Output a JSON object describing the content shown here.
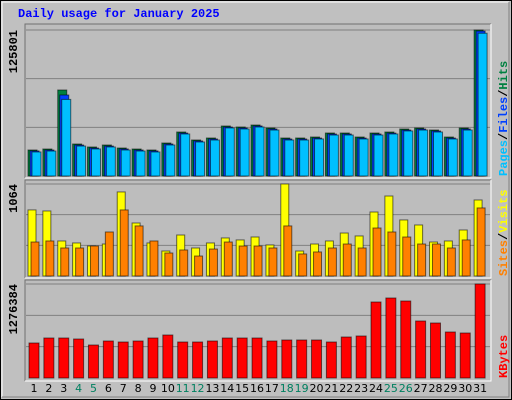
{
  "title": "Daily usage for January 2025",
  "legend_separator": "/",
  "chart_data": [
    {
      "type": "bar",
      "ylim": [
        0,
        125801
      ],
      "yticks": [
        125801
      ],
      "grid": true,
      "series": [
        {
          "name": "Hits",
          "color": "#008040",
          "values": [
            22400,
            23260,
            74100,
            27570,
            24990,
            26710,
            24120,
            23260,
            22400,
            28430,
            37910,
            31020,
            32740,
            43080,
            42220,
            43940,
            41360,
            32740,
            32740,
            33600,
            37050,
            37050,
            33600,
            37050,
            37910,
            40500,
            41360,
            39630,
            33600,
            41360,
            125801
          ]
        },
        {
          "name": "Files",
          "color": "#0040ff",
          "values": [
            21600,
            22400,
            69790,
            26700,
            24100,
            25800,
            23300,
            22400,
            21600,
            27600,
            37000,
            30200,
            31900,
            42200,
            41400,
            43100,
            40500,
            31900,
            31900,
            32700,
            36200,
            36200,
            32700,
            36200,
            37000,
            39600,
            40500,
            38800,
            32700,
            40500,
            124900
          ]
        },
        {
          "name": "Pages",
          "color": "#00c0ff",
          "values": [
            20700,
            21500,
            66000,
            25800,
            23300,
            25000,
            22400,
            21500,
            20700,
            26700,
            36200,
            29300,
            31000,
            41400,
            40500,
            42200,
            39600,
            31000,
            31000,
            31900,
            35300,
            35300,
            31900,
            35300,
            36200,
            38800,
            39600,
            37900,
            31900,
            39600,
            123000
          ]
        }
      ]
    },
    {
      "type": "bar",
      "ylim": [
        0,
        1064
      ],
      "yticks": [
        1064
      ],
      "grid": true,
      "series": [
        {
          "name": "Visits",
          "color": "#ffff00",
          "values": [
            764,
            752,
            405,
            382,
            347,
            370,
            972,
            613,
            382,
            289,
            474,
            324,
            382,
            440,
            417,
            451,
            359,
            1064,
            289,
            370,
            405,
            497,
            463,
            740,
            925,
            648,
            590,
            393,
            405,
            532,
            879
          ]
        },
        {
          "name": "Sites",
          "color": "#ff8000",
          "values": [
            393,
            405,
            324,
            324,
            347,
            509,
            764,
            579,
            405,
            266,
            301,
            231,
            312,
            393,
            347,
            347,
            324,
            579,
            255,
            278,
            324,
            370,
            324,
            555,
            509,
            451,
            370,
            370,
            324,
            417,
            787
          ]
        }
      ]
    },
    {
      "type": "bar",
      "ylim": [
        0,
        1276384
      ],
      "yticks": [
        1276384
      ],
      "grid": true,
      "categories": [
        "1",
        "2",
        "3",
        "4",
        "5",
        "6",
        "7",
        "8",
        "9",
        "10",
        "11",
        "12",
        "13",
        "14",
        "15",
        "16",
        "17",
        "18",
        "19",
        "20",
        "21",
        "22",
        "23",
        "24",
        "25",
        "26",
        "27",
        "28",
        "29",
        "30",
        "31"
      ],
      "category_colors": [
        "#000000",
        "#000000",
        "#000000",
        "#008060",
        "#008060",
        "#000000",
        "#000000",
        "#000000",
        "#000000",
        "#000000",
        "#008060",
        "#008060",
        "#000000",
        "#000000",
        "#000000",
        "#000000",
        "#000000",
        "#008060",
        "#008060",
        "#000000",
        "#000000",
        "#000000",
        "#000000",
        "#000000",
        "#008060",
        "#008060",
        "#000000",
        "#000000",
        "#000000",
        "#000000",
        "#000000"
      ],
      "series": [
        {
          "name": "KBytes",
          "color": "#ff0000",
          "values": [
            475230,
            543120,
            543120,
            529540,
            448070,
            502390,
            488800,
            502390,
            543120,
            583850,
            488800,
            488800,
            502390,
            543120,
            543120,
            543120,
            502390,
            515960,
            515960,
            515960,
            488800,
            556700,
            570280,
            1031930,
            1086240,
            1045510,
            773950,
            746790,
            624590,
            611010,
            1276384
          ]
        }
      ]
    }
  ]
}
